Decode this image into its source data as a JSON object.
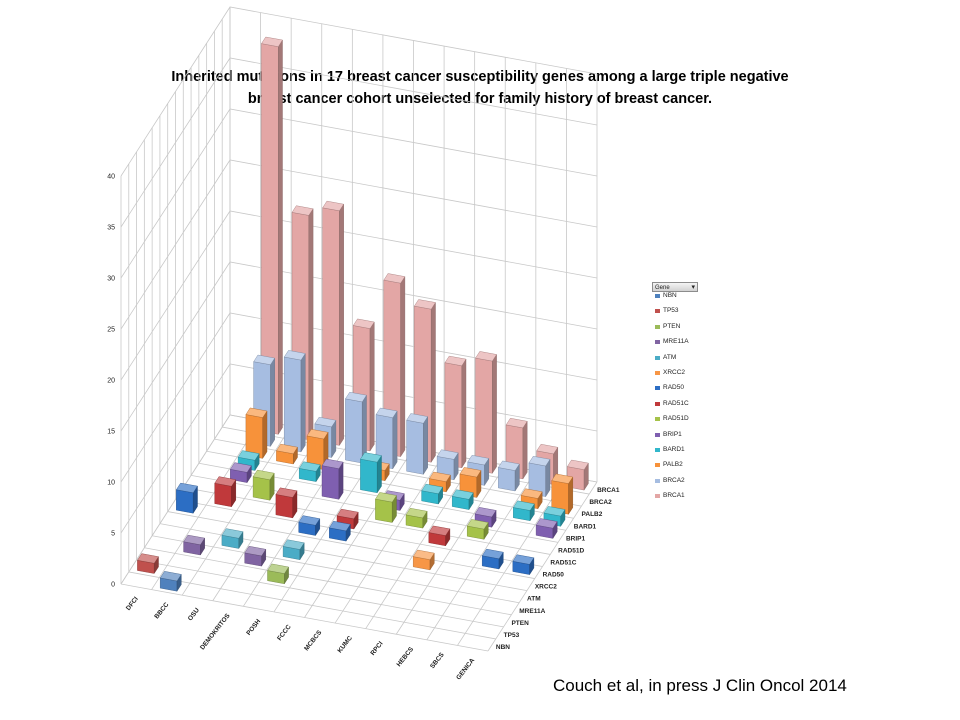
{
  "chart_data": {
    "type": "bar3d",
    "title_lines": [
      "Inherited mutations in 17 breast cancer susceptibility genes among a large triple negative",
      "breast cancer cohort unselected for family history of breast cancer."
    ],
    "ylim": [
      0,
      40
    ],
    "yticks": [
      0,
      5,
      10,
      15,
      20,
      25,
      30,
      35,
      40
    ],
    "grid": true,
    "legend_placement": "right",
    "legend_title": "Gene",
    "x_categories": [
      "DFCI",
      "BBCC",
      "OSU",
      "DEMOKRITOS",
      "POSH",
      "FCCC",
      "MCBCS",
      "KUMC",
      "RPCI",
      "HEBCS",
      "SBCS",
      "GENICA"
    ],
    "depth_labels": [
      "NBN",
      "TP53",
      "PTEN",
      "MRE11A",
      "ATM",
      "XRCC2",
      "RAD50",
      "RAD51C",
      "RAD51D",
      "BRIP1",
      "BARD1",
      "PALB2",
      "BRCA2",
      "BRCA1"
    ],
    "series": [
      {
        "name": "NBN",
        "color": "#4f81bd",
        "values": [
          0,
          1,
          0,
          0,
          0,
          0,
          0,
          0,
          0,
          0,
          0,
          0
        ]
      },
      {
        "name": "TP53",
        "color": "#c0504d",
        "values": [
          1,
          0,
          0,
          0,
          0,
          0,
          0,
          0,
          0,
          0,
          0,
          0
        ]
      },
      {
        "name": "PTEN",
        "color": "#9bbb59",
        "values": [
          0,
          0,
          0,
          0,
          1,
          0,
          0,
          0,
          0,
          0,
          0,
          0
        ]
      },
      {
        "name": "MRE11A",
        "color": "#8064a2",
        "values": [
          0,
          1,
          0,
          1,
          0,
          0,
          0,
          0,
          0,
          0,
          0,
          0
        ]
      },
      {
        "name": "ATM",
        "color": "#4bacc6",
        "values": [
          0,
          0,
          1,
          0,
          1,
          0,
          0,
          0,
          0,
          0,
          0,
          0
        ]
      },
      {
        "name": "XRCC2",
        "color": "#f79646",
        "values": [
          0,
          0,
          0,
          0,
          0,
          0,
          0,
          0,
          1,
          0,
          0,
          0
        ]
      },
      {
        "name": "RAD50",
        "color": "#2c6ec4",
        "values": [
          2,
          0,
          0,
          0,
          1,
          1,
          0,
          0,
          0,
          0,
          1,
          1
        ]
      },
      {
        "name": "RAD51C",
        "color": "#c0393b",
        "values": [
          0,
          2,
          0,
          2,
          0,
          1,
          0,
          0,
          1,
          0,
          0,
          0
        ]
      },
      {
        "name": "RAD51D",
        "color": "#a5c249",
        "values": [
          0,
          0,
          2,
          0,
          0,
          0,
          2,
          1,
          0,
          1,
          0,
          0
        ]
      },
      {
        "name": "BRIP1",
        "color": "#7f5fb0",
        "values": [
          0,
          1,
          0,
          0,
          3,
          0,
          1,
          0,
          0,
          1,
          0,
          1
        ]
      },
      {
        "name": "BARD1",
        "color": "#31b7cb",
        "values": [
          0,
          1,
          0,
          1,
          0,
          3,
          0,
          1,
          1,
          0,
          1,
          1
        ]
      },
      {
        "name": "PALB2",
        "color": "#f7923a",
        "values": [
          0,
          4,
          1,
          3,
          0,
          1,
          0,
          1,
          2,
          0,
          1,
          3
        ]
      },
      {
        "name": "BRCA2",
        "color": "#a6bde1",
        "values": [
          0,
          8,
          9,
          3,
          6,
          5,
          5,
          2,
          2,
          2,
          3,
          0
        ]
      },
      {
        "name": "BRCA1",
        "color": "#e3a6a5",
        "values": [
          0,
          38,
          22,
          23,
          12,
          17,
          15,
          10,
          11,
          5,
          3,
          2
        ]
      }
    ]
  },
  "citation": "Couch et al, in press J Clin Oncol 2014"
}
